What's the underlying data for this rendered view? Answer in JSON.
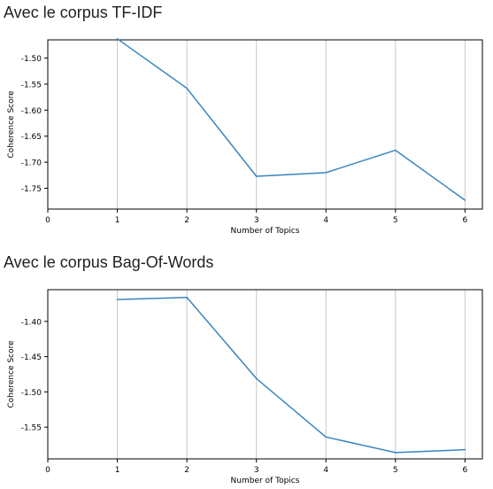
{
  "sections": [
    {
      "title": "Avec le corpus TF-IDF"
    },
    {
      "title": "Avec le corpus Bag-Of-Words"
    }
  ],
  "colors": {
    "line": "#3a86c0",
    "grid": "#c8c8c8",
    "axis": "#000000"
  },
  "chart_data": [
    {
      "type": "line",
      "title": "",
      "xlabel": "Number of Topics",
      "ylabel": "Coherence Score",
      "x_ticks": [
        0,
        1,
        2,
        3,
        4,
        5,
        6
      ],
      "y_ticks": [
        -1.5,
        -1.55,
        -1.6,
        -1.65,
        -1.7,
        -1.75
      ],
      "y_tick_labels": [
        "-1.50",
        "-1.55",
        "-1.60",
        "-1.65",
        "-1.70",
        "-1.75"
      ],
      "xlim": [
        0,
        6.25
      ],
      "ylim": [
        -1.79,
        -1.465
      ],
      "grid": "vertical",
      "series": [
        {
          "x": [
            1,
            2,
            3,
            4,
            5,
            6
          ],
          "values": [
            -1.463,
            -1.558,
            -1.727,
            -1.72,
            -1.677,
            -1.773
          ]
        }
      ]
    },
    {
      "type": "line",
      "title": "",
      "xlabel": "Number of Topics",
      "ylabel": "Coherence Score",
      "x_ticks": [
        0,
        1,
        2,
        3,
        4,
        5,
        6
      ],
      "y_ticks": [
        -1.4,
        -1.45,
        -1.5,
        -1.55
      ],
      "y_tick_labels": [
        "-1.40",
        "-1.45",
        "-1.50",
        "-1.55"
      ],
      "xlim": [
        0,
        6.25
      ],
      "ylim": [
        -1.595,
        -1.355
      ],
      "grid": "vertical",
      "series": [
        {
          "x": [
            1,
            2,
            3,
            4,
            5,
            6
          ],
          "values": [
            -1.369,
            -1.366,
            -1.481,
            -1.564,
            -1.586,
            -1.582
          ]
        }
      ]
    }
  ]
}
